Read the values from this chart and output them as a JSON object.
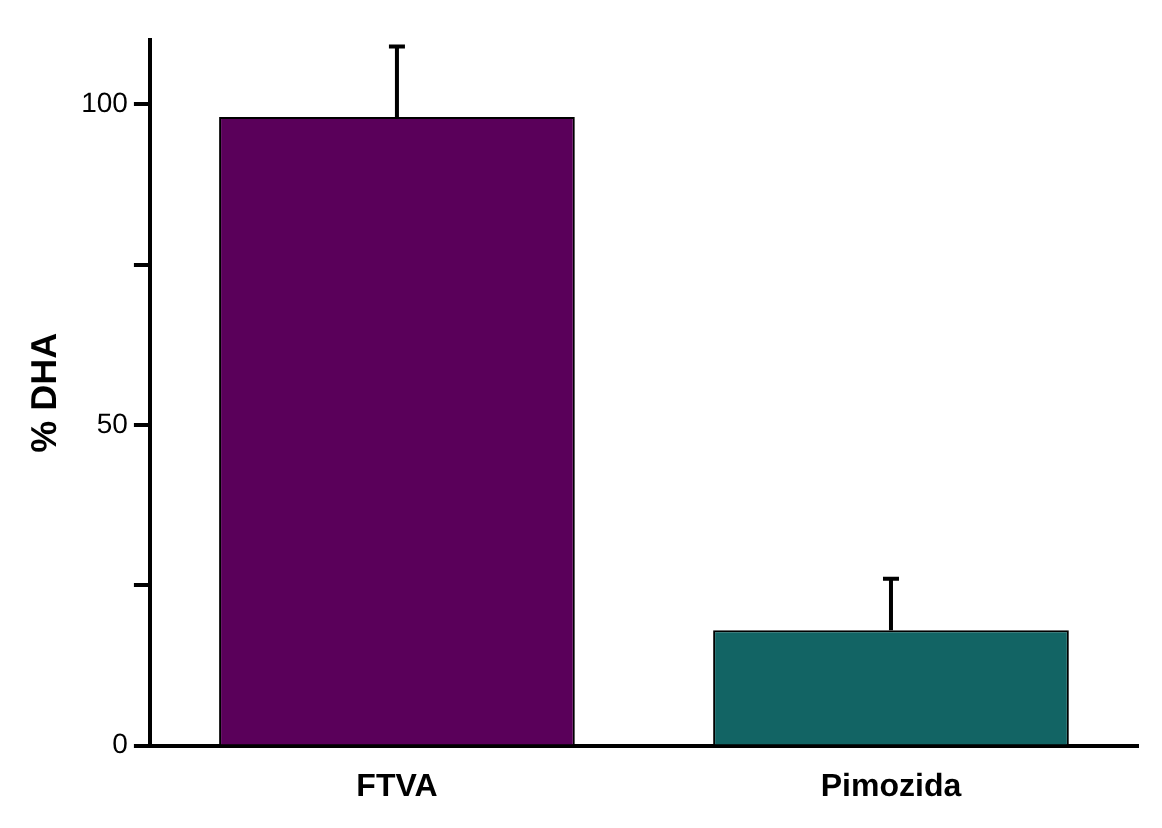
{
  "chart_data": {
    "type": "bar",
    "ylabel": "% DHA",
    "categories": [
      "FTVA",
      "Pimozida"
    ],
    "values": [
      98,
      18
    ],
    "colors": [
      "#5a005a",
      "#126464"
    ],
    "errors": [
      [
        98,
        109
      ],
      [
        18,
        26
      ]
    ],
    "ylim": [
      0,
      110
    ],
    "yticks": [
      0,
      {
        "value": 25,
        "label": null
      },
      50,
      {
        "value": 75,
        "label": null
      },
      100
    ],
    "grid": false,
    "legend": false
  }
}
